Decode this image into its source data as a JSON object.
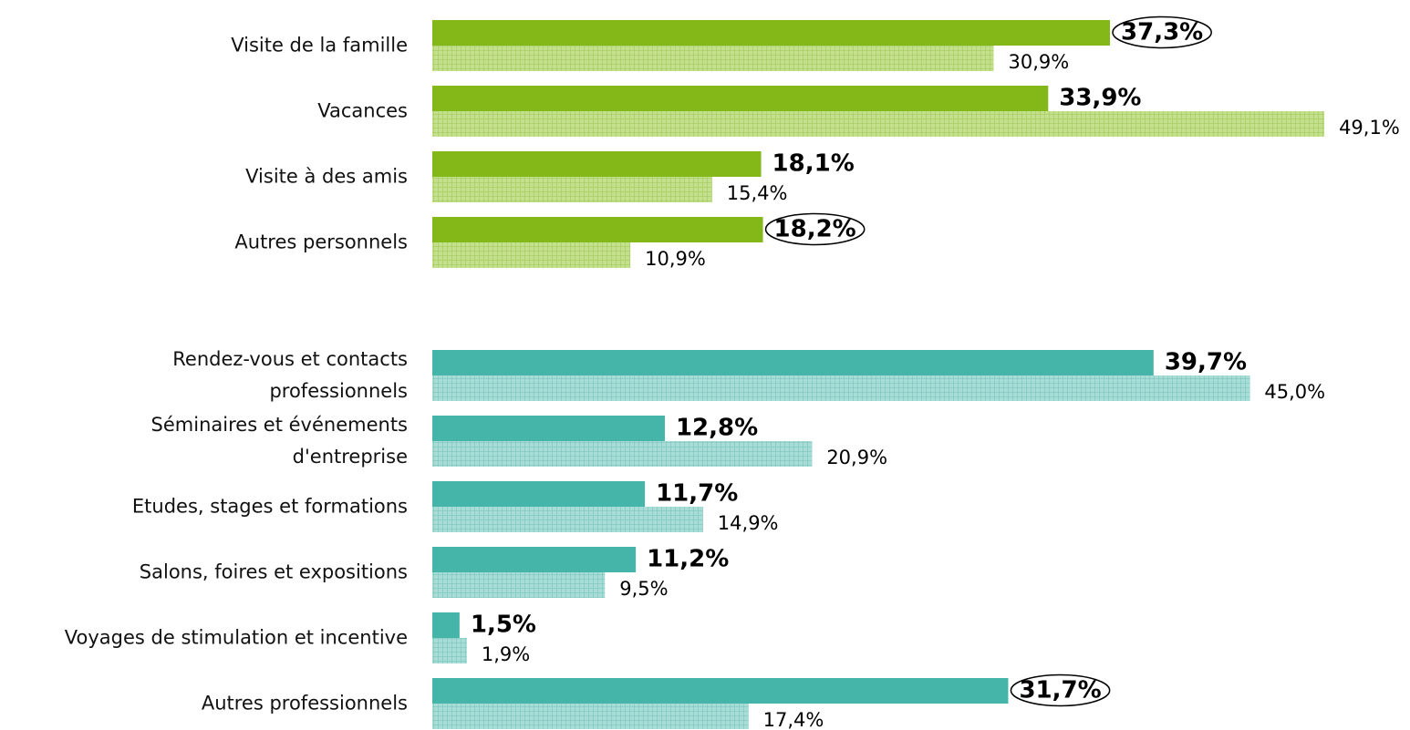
{
  "chart_data": [
    {
      "type": "bar",
      "orientation": "horizontal",
      "xlim": [
        0,
        50
      ],
      "categories": [
        "Visite de la famille",
        "Vacances",
        "Visite à des amis",
        "Autres personnels"
      ],
      "series": [
        {
          "color": "#84b819",
          "pattern": "solid",
          "values": [
            37.3,
            33.9,
            18.1,
            18.2
          ],
          "value_labels": [
            "37,3%",
            "33,9%",
            "18,1%",
            "18,2%"
          ],
          "circled": [
            0,
            3
          ]
        },
        {
          "color": "#c5e08c",
          "pattern": "grid",
          "values": [
            30.9,
            49.1,
            15.4,
            10.9
          ],
          "value_labels": [
            "30,9%",
            "49,1%",
            "15,4%",
            "10,9%"
          ]
        }
      ]
    },
    {
      "type": "bar",
      "orientation": "horizontal",
      "xlim": [
        0,
        50
      ],
      "categories": [
        "Rendez-vous et contacts\nprofessionnels",
        "Séminaires et événements\nd'entreprise",
        "Etudes, stages et formations",
        "Salons, foires et expositions",
        "Voyages de stimulation et incentive",
        "Autres professionnels"
      ],
      "series": [
        {
          "color": "#45b5aa",
          "pattern": "solid",
          "values": [
            39.7,
            12.8,
            11.7,
            11.2,
            1.5,
            31.7
          ],
          "value_labels": [
            "39,7%",
            "12,8%",
            "11,7%",
            "11,2%",
            "1,5%",
            "31,7%"
          ],
          "circled": [
            5
          ]
        },
        {
          "color": "#a8dcd6",
          "pattern": "grid",
          "values": [
            45.0,
            20.9,
            14.9,
            9.5,
            1.9,
            17.4
          ],
          "value_labels": [
            "45,0%",
            "20,9%",
            "14,9%",
            "9,5%",
            "1,9%",
            "17,4%"
          ]
        }
      ]
    }
  ]
}
